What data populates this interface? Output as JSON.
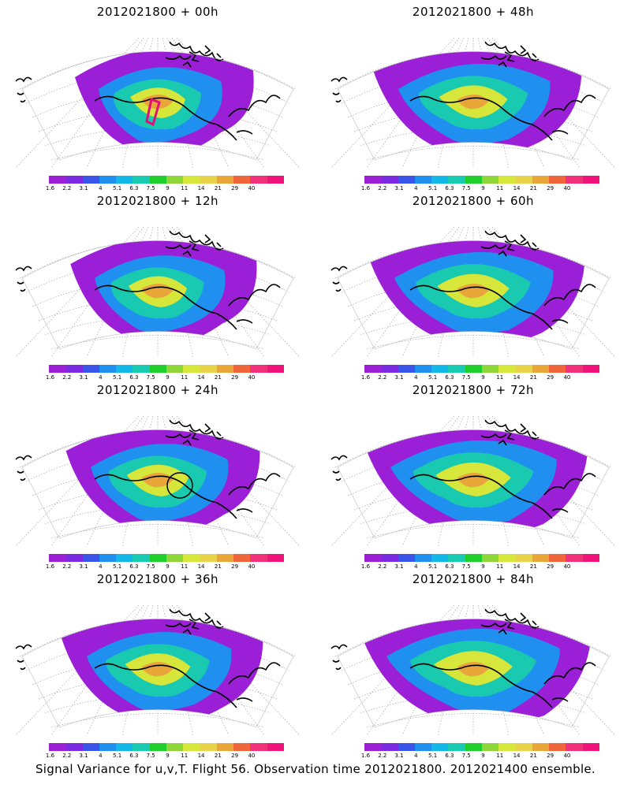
{
  "figure": {
    "caption": "Signal Variance for u,v,T. Flight 56. Observation time 2012021800. 2012021400 ensemble."
  },
  "colorbar": {
    "labels": [
      "1.6",
      "2.2",
      "3.1",
      "4",
      "5.1",
      "6.3",
      "7.5",
      "9",
      "11",
      "14",
      "21",
      "29",
      "40"
    ],
    "colors": [
      "#9b1fd6",
      "#7a2ae0",
      "#3a55e8",
      "#1f8ff0",
      "#12b8e8",
      "#19c9b0",
      "#1fcf2e",
      "#8fd63a",
      "#d6e63a",
      "#e8d24a",
      "#e8a53a",
      "#f0653a",
      "#f0307a",
      "#f0147a"
    ]
  },
  "panels": [
    {
      "title": "2012021800 + 00h",
      "lead": 0
    },
    {
      "title": "2012021800 + 48h",
      "lead": 48
    },
    {
      "title": "2012021800 + 12h",
      "lead": 12
    },
    {
      "title": "2012021800 + 60h",
      "lead": 60
    },
    {
      "title": "2012021800 + 24h",
      "lead": 24
    },
    {
      "title": "2012021800 + 72h",
      "lead": 72
    },
    {
      "title": "2012021800 + 36h",
      "lead": 36
    },
    {
      "title": "2012021800 + 84h",
      "lead": 84
    }
  ]
}
